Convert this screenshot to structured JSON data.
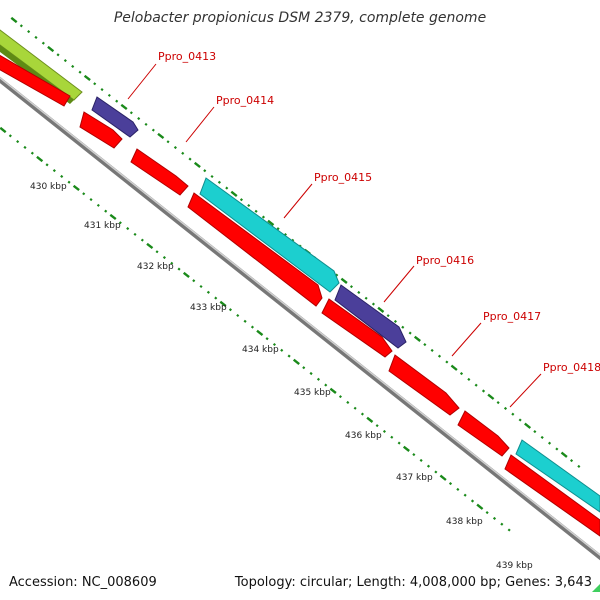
{
  "title": "Pelobacter propionicus DSM 2379, complete genome",
  "footer": {
    "accession": "Accession: NC_008609",
    "summary": "Topology: circular; Length: 4,008,000 bp; Genes: 3,643"
  },
  "colors": {
    "background": "#ffffff",
    "backbone": "#8c8c8c",
    "red_gene": "#ff0000",
    "cyan_gene": "#1ccfcf",
    "purple_gene": "#4b3f9a",
    "green_gene": "#a8d63a",
    "ticks": "#1a8a1a",
    "gene_label": "#cc0000"
  },
  "gene_labels": [
    "Ppro_0413",
    "Ppro_0414",
    "Ppro_0415",
    "Ppro_0416",
    "Ppro_0417",
    "Ppro_0418"
  ],
  "scale_labels": [
    "430 kbp",
    "431 kbp",
    "432 kbp",
    "433 kbp",
    "434 kbp",
    "435 kbp",
    "436 kbp",
    "437 kbp",
    "438 kbp",
    "439 kbp"
  ]
}
